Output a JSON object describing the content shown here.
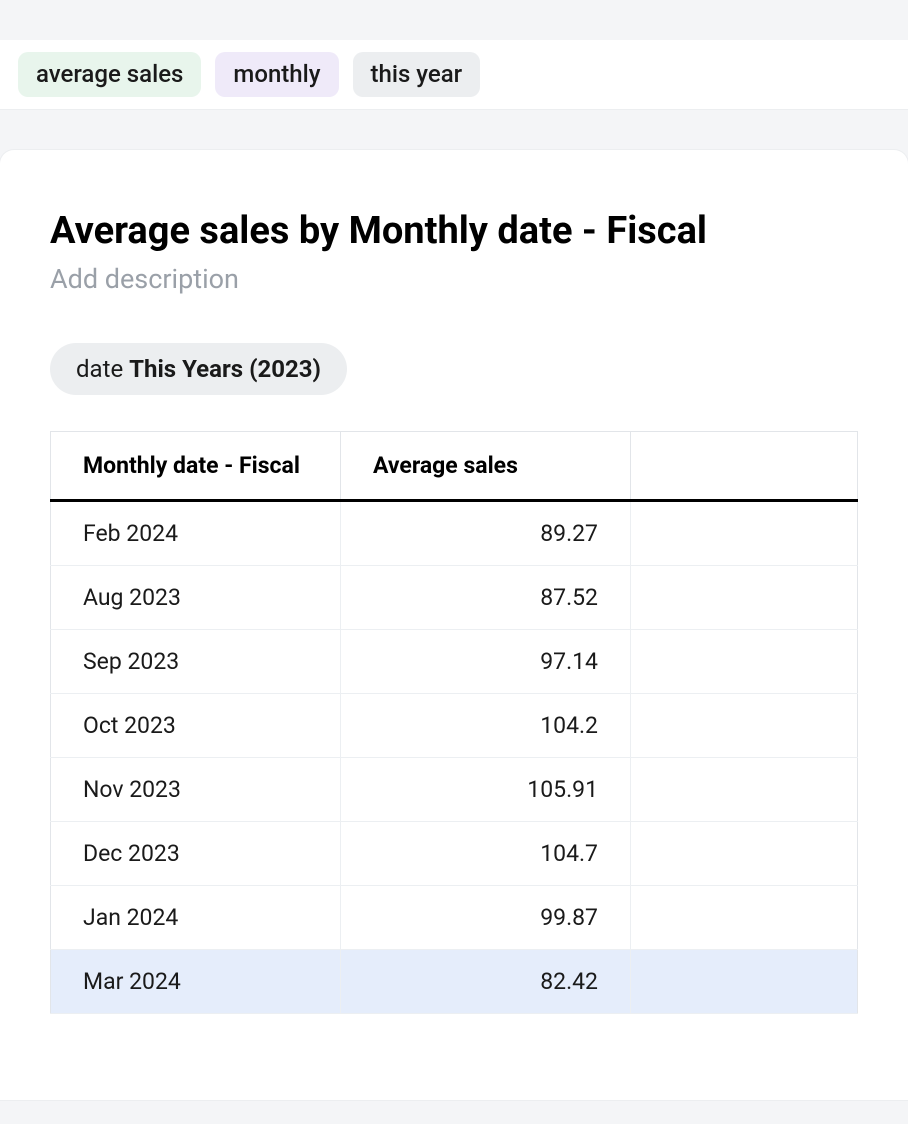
{
  "search": {
    "tokens": [
      {
        "label": "average sales",
        "color": "green"
      },
      {
        "label": "monthly",
        "color": "purple"
      },
      {
        "label": "this year",
        "color": "gray"
      }
    ]
  },
  "header": {
    "title": "Average sales by Monthly date - Fiscal",
    "description_placeholder": "Add description"
  },
  "filter": {
    "prefix": "date ",
    "value": "This Years (2023)"
  },
  "table": {
    "columns": [
      "Monthly date - Fiscal",
      "Average sales"
    ],
    "rows": [
      {
        "month": "Feb 2024",
        "value": "89.27",
        "highlighted": false
      },
      {
        "month": "Aug 2023",
        "value": "87.52",
        "highlighted": false
      },
      {
        "month": "Sep 2023",
        "value": "97.14",
        "highlighted": false
      },
      {
        "month": "Oct 2023",
        "value": "104.2",
        "highlighted": false
      },
      {
        "month": "Nov 2023",
        "value": "105.91",
        "highlighted": false
      },
      {
        "month": "Dec 2023",
        "value": "104.7",
        "highlighted": false
      },
      {
        "month": "Jan 2024",
        "value": "99.87",
        "highlighted": false
      },
      {
        "month": "Mar 2024",
        "value": "82.42",
        "highlighted": true
      }
    ]
  },
  "colors": {
    "token_green_bg": "#e8f5ec",
    "token_purple_bg": "#efeaf9",
    "token_gray_bg": "#eceef0",
    "background": "#f4f5f7",
    "card_bg": "#ffffff",
    "border": "#e2e5e9",
    "highlight_row_bg": "#e5edfb",
    "text_muted": "#9aa0a8"
  }
}
